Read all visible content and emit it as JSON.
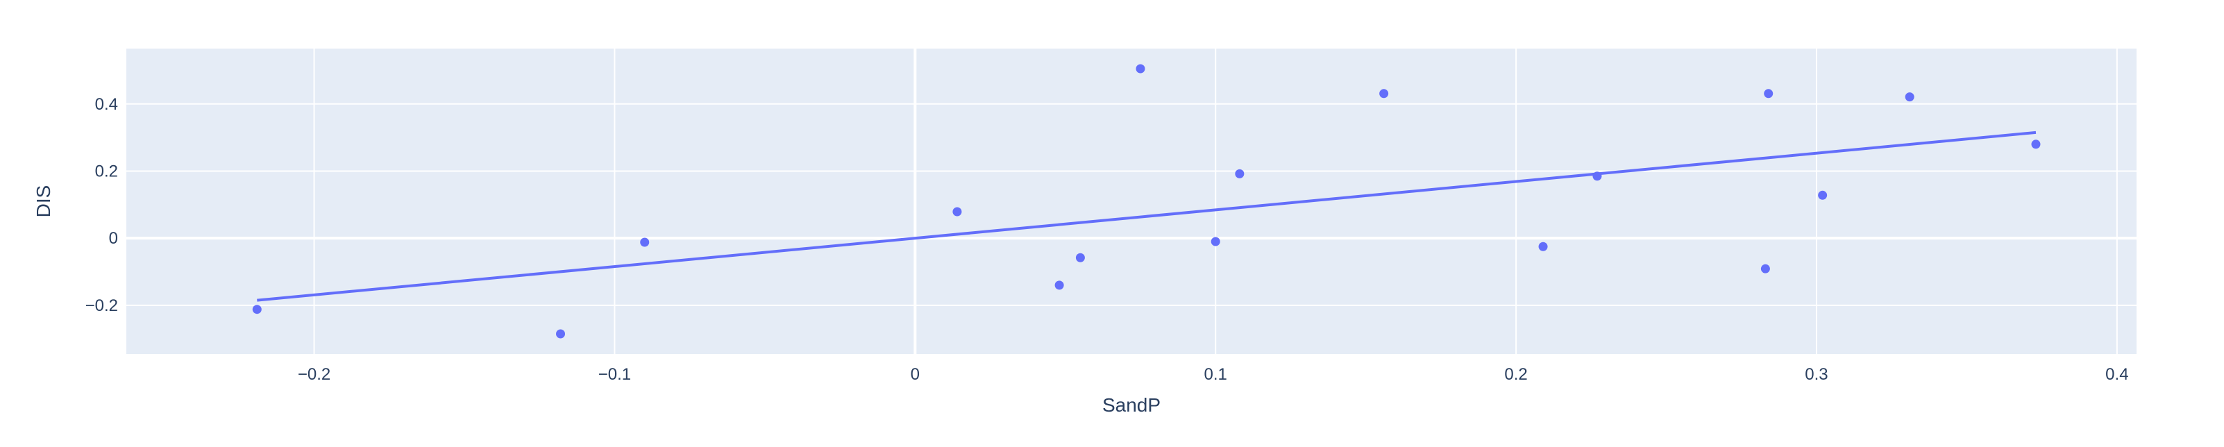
{
  "colors": {
    "plot_background": "#e5ecf6",
    "grid": "#ffffff",
    "marker": "#636efa",
    "trendline": "#636efa",
    "text": "#2a3f5f"
  },
  "chart_data": {
    "type": "scatter",
    "xlabel": "SandP",
    "ylabel": "DIS",
    "xlim": [
      -0.2625,
      0.4065
    ],
    "ylim": [
      -0.345,
      0.565
    ],
    "x_ticks": [
      -0.2,
      -0.1,
      0,
      0.1,
      0.2,
      0.3,
      0.4
    ],
    "x_tick_labels": [
      "−0.2",
      "−0.1",
      "0",
      "0.1",
      "0.2",
      "0.3",
      "0.4"
    ],
    "y_ticks": [
      -0.2,
      0,
      0.2,
      0.4
    ],
    "y_tick_labels": [
      "−0.2",
      "0",
      "0.2",
      "0.4"
    ],
    "grid": true,
    "legend": "none",
    "series": [
      {
        "mode": "markers",
        "x": [
          -0.219,
          -0.118,
          -0.09,
          0.014,
          0.048,
          0.055,
          0.075,
          0.1,
          0.108,
          0.156,
          0.209,
          0.227,
          0.283,
          0.284,
          0.302,
          0.331,
          0.373
        ],
        "y": [
          -0.212,
          -0.285,
          -0.012,
          0.079,
          -0.14,
          -0.058,
          0.505,
          -0.01,
          0.192,
          0.431,
          -0.025,
          0.185,
          -0.091,
          0.431,
          0.128,
          0.421,
          0.28
        ]
      },
      {
        "mode": "lines",
        "x": [
          -0.219,
          0.373
        ],
        "y": [
          -0.185,
          0.315
        ]
      }
    ]
  }
}
